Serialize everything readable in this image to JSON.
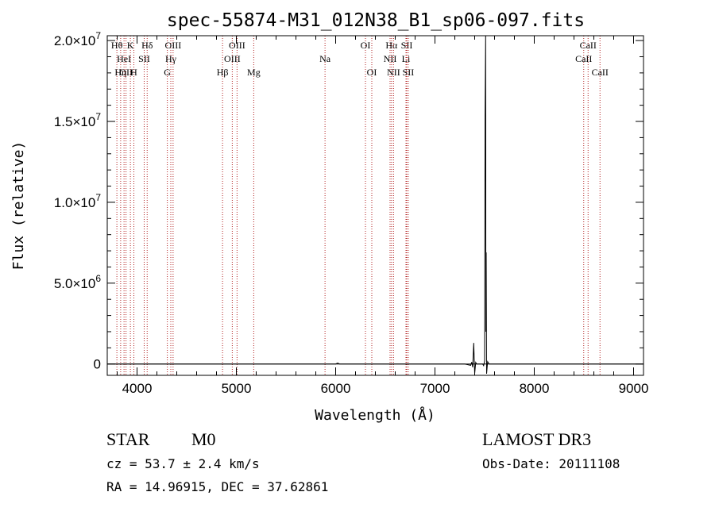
{
  "chart_data": {
    "type": "line",
    "title": "spec-55874-M31_012N38_B1_sp06-097.fits",
    "xlabel": "Wavelength (Å)",
    "ylabel": "Flux (relative)",
    "xlim": [
      3700,
      9100
    ],
    "ylim": [
      -700000,
      20300000
    ],
    "x_ticks": [
      4000,
      5000,
      6000,
      7000,
      8000,
      9000
    ],
    "x_tick_labels": [
      "4000",
      "5000",
      "6000",
      "7000",
      "8000",
      "9000"
    ],
    "y_ticks": [
      {
        "value": 20000000,
        "mantissa": "2.0×10",
        "exp": "7"
      },
      {
        "value": 15000000,
        "mantissa": "1.5×10",
        "exp": "7"
      },
      {
        "value": 10000000,
        "mantissa": "1.0×10",
        "exp": "7"
      },
      {
        "value": 5000000,
        "mantissa": "5.0×10",
        "exp": "6"
      },
      {
        "value": 0,
        "mantissa": "0",
        "exp": ""
      }
    ],
    "zero_line": 0,
    "series": [
      {
        "values": [
          [
            3700,
            0
          ],
          [
            4000,
            0
          ],
          [
            4500,
            0
          ],
          [
            5000,
            0
          ],
          [
            5500,
            0
          ],
          [
            6000,
            0
          ],
          [
            6020,
            60000
          ],
          [
            6040,
            0
          ],
          [
            6500,
            0
          ],
          [
            7000,
            0
          ],
          [
            7300,
            0
          ],
          [
            7360,
            -80000
          ],
          [
            7370,
            120000
          ],
          [
            7380,
            -200000
          ],
          [
            7390,
            1300000
          ],
          [
            7400,
            -600000
          ],
          [
            7410,
            100000
          ],
          [
            7420,
            0
          ],
          [
            7480,
            0
          ],
          [
            7490,
            -100000
          ],
          [
            7500,
            200000
          ],
          [
            7505,
            15400000
          ],
          [
            7510,
            20300000
          ],
          [
            7513,
            2000000
          ],
          [
            7516,
            6900000
          ],
          [
            7520,
            -600000
          ],
          [
            7530,
            150000
          ],
          [
            7545,
            0
          ],
          [
            8000,
            0
          ],
          [
            8500,
            0
          ],
          [
            9100,
            0
          ]
        ]
      }
    ],
    "lines": [
      {
        "wl": 3797,
        "label": "Hθ",
        "row": 0
      },
      {
        "wl": 3835,
        "label": "Hη",
        "row": 2
      },
      {
        "wl": 3869,
        "label": "HeI",
        "row": 1
      },
      {
        "wl": 3889,
        "label": "OII",
        "row": 2
      },
      {
        "wl": 3933,
        "label": "K",
        "row": 0
      },
      {
        "wl": 3968,
        "label": "H",
        "row": 2
      },
      {
        "wl": 4072,
        "label": "SII",
        "row": 1
      },
      {
        "wl": 4102,
        "label": "Hδ",
        "row": 0
      },
      {
        "wl": 4305,
        "label": "G",
        "row": 2
      },
      {
        "wl": 4340,
        "label": "Hγ",
        "row": 1
      },
      {
        "wl": 4363,
        "label": "OIII",
        "row": 0
      },
      {
        "wl": 4861,
        "label": "Hβ",
        "row": 2
      },
      {
        "wl": 4959,
        "label": "OIII",
        "row": 1
      },
      {
        "wl": 5007,
        "label": "OIII",
        "row": 0
      },
      {
        "wl": 5175,
        "label": "Mg",
        "row": 2
      },
      {
        "wl": 5893,
        "label": "Na",
        "row": 1
      },
      {
        "wl": 6300,
        "label": "OI",
        "row": 0
      },
      {
        "wl": 6364,
        "label": "OI",
        "row": 2
      },
      {
        "wl": 6548,
        "label": "NII",
        "row": 1
      },
      {
        "wl": 6563,
        "label": "Hα",
        "row": 0
      },
      {
        "wl": 6583,
        "label": "NII",
        "row": 2
      },
      {
        "wl": 6708,
        "label": "Li",
        "row": 1
      },
      {
        "wl": 6716,
        "label": "SII",
        "row": 0
      },
      {
        "wl": 6731,
        "label": "SII",
        "row": 2
      },
      {
        "wl": 8498,
        "label": "CaII",
        "row": 1
      },
      {
        "wl": 8542,
        "label": "CaII",
        "row": 0
      },
      {
        "wl": 8662,
        "label": "CaII",
        "row": 2
      }
    ],
    "colors": {
      "axes": "#000000",
      "line_markers": "#b22222",
      "spectrum": "#000000"
    },
    "grid": false
  },
  "info": {
    "class": "STAR",
    "subclass": "M0",
    "survey": "LAMOST DR3",
    "cz": "cz = 53.7 ± 2.4 km/s",
    "obs_date": "Obs-Date: 20111108",
    "coords": "RA =  14.96915, DEC =  37.62861"
  }
}
